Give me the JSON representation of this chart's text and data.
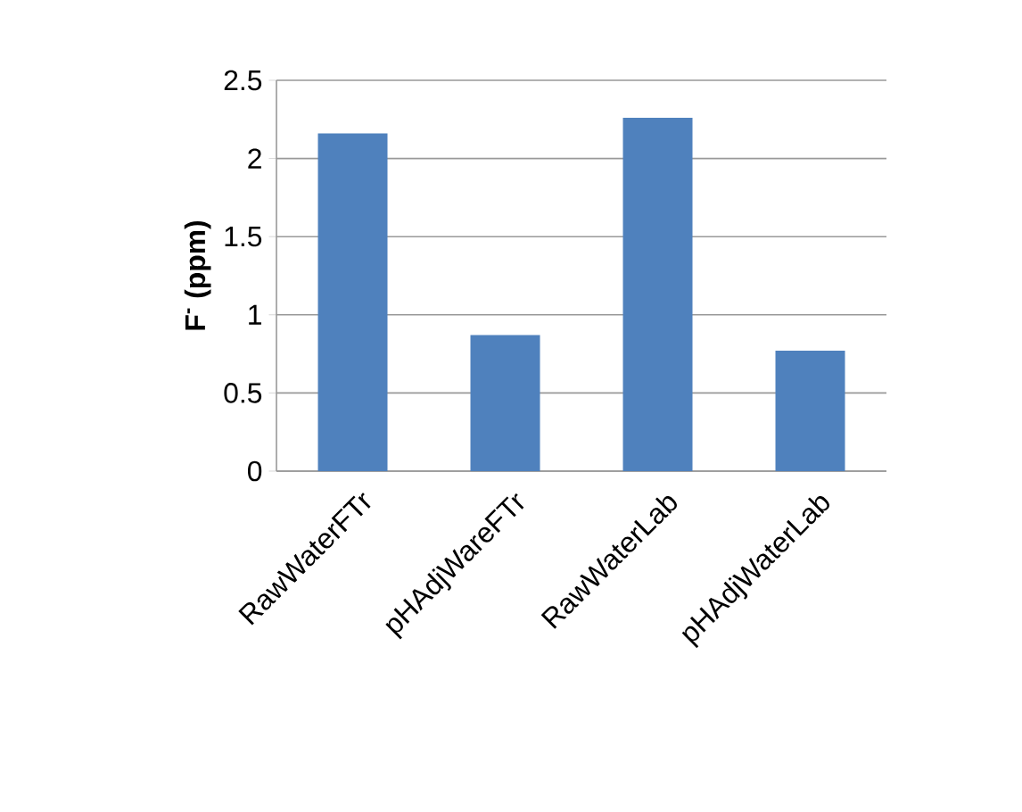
{
  "chart_data": {
    "type": "bar",
    "ylabel": "**F$^{-}$ (ppm)**",
    "categories": [
      "RawWaterFTr",
      "pHAdjWareFTr",
      "RawWaterLab",
      "pHAdjWaterLab"
    ],
    "values": [
      2.16,
      0.87,
      2.26,
      0.77
    ],
    "color": "#4f81bd",
    "ylim": [
      0,
      2.5
    ],
    "yticks": [
      0,
      0.5,
      1,
      1.5,
      2,
      2.5
    ],
    "grid": "y"
  }
}
